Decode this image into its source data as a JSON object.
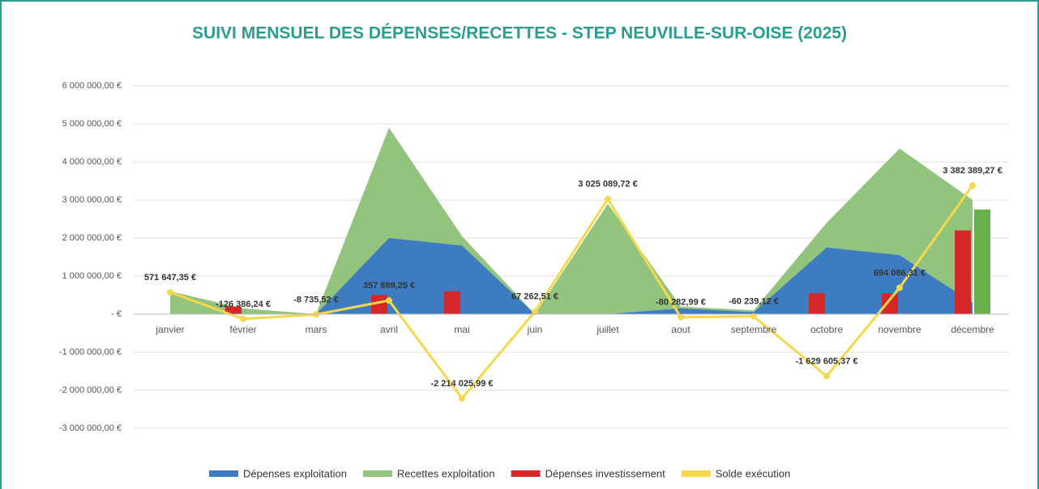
{
  "chart_data": {
    "type": "combo",
    "title": "SUIVI MENSUEL DES DÉPENSES/RECETTES - STEP NEUVILLE-SUR-OISE (2025)",
    "categories": [
      "janvier",
      "février",
      "mars",
      "avril",
      "mai",
      "juin",
      "juillet",
      "aout",
      "septembre",
      "octobre",
      "novembre",
      "décembre"
    ],
    "ylim": [
      -3000000,
      6000000
    ],
    "yticks": [
      {
        "value": -3000000,
        "label": "-3 000 000,00 €"
      },
      {
        "value": -2000000,
        "label": "-2 000 000,00 €"
      },
      {
        "value": -1000000,
        "label": "-1 000 000,00 €"
      },
      {
        "value": 0,
        "label": "- €"
      },
      {
        "value": 1000000,
        "label": "1 000 000,00 €"
      },
      {
        "value": 2000000,
        "label": "2 000 000,00 €"
      },
      {
        "value": 3000000,
        "label": "3 000 000,00 €"
      },
      {
        "value": 4000000,
        "label": "4 000 000,00 €"
      },
      {
        "value": 5000000,
        "label": "5 000 000,00 €"
      },
      {
        "value": 6000000,
        "label": "6 000 000,00 €"
      }
    ],
    "grid": true,
    "series": [
      {
        "name": "Recettes exploitation",
        "type": "area",
        "color": "#93c47d",
        "legend_order": 2,
        "values": [
          600000,
          150000,
          0,
          4900000,
          2050000,
          0,
          2900000,
          200000,
          100000,
          2400000,
          4350000,
          3000000
        ]
      },
      {
        "name": "Dépenses exploitation",
        "type": "area",
        "color": "#3d7cc0",
        "legend_order": 1,
        "values": [
          0,
          0,
          0,
          2000000,
          1800000,
          0,
          0,
          150000,
          50000,
          1750000,
          1550000,
          300000
        ]
      },
      {
        "name": "Dépenses investissement",
        "type": "bar",
        "color": "#d62728",
        "legend_order": 3,
        "values": [
          0,
          200000,
          0,
          500000,
          600000,
          0,
          0,
          0,
          0,
          550000,
          550000,
          2200000
        ]
      },
      {
        "type": "bar",
        "color": "#6ab04c",
        "offset": "right",
        "values": [
          0,
          0,
          0,
          0,
          0,
          0,
          0,
          0,
          0,
          0,
          0,
          2750000
        ]
      },
      {
        "name": "Solde exécution",
        "type": "line",
        "color": "#f5d84b",
        "legend_order": 4,
        "values": [
          571647.35,
          -126386.24,
          -8735.52,
          357889.25,
          -2214025.99,
          67262.51,
          3025089.72,
          -80282.99,
          -60239.12,
          -1629605.37,
          694086.31,
          3382389.27
        ],
        "value_labels": [
          "571 647,35 €",
          "-126 386,24 €",
          "-8 735,52 €",
          "357 889,25 €",
          "-2 214 025,99 €",
          "67 262,51 €",
          "3 025 089,72 €",
          "-80 282,99 €",
          "-60 239,12 €",
          "-1 629 605,37 €",
          "694 086,31 €",
          "3 382 389,27 €"
        ]
      }
    ]
  }
}
